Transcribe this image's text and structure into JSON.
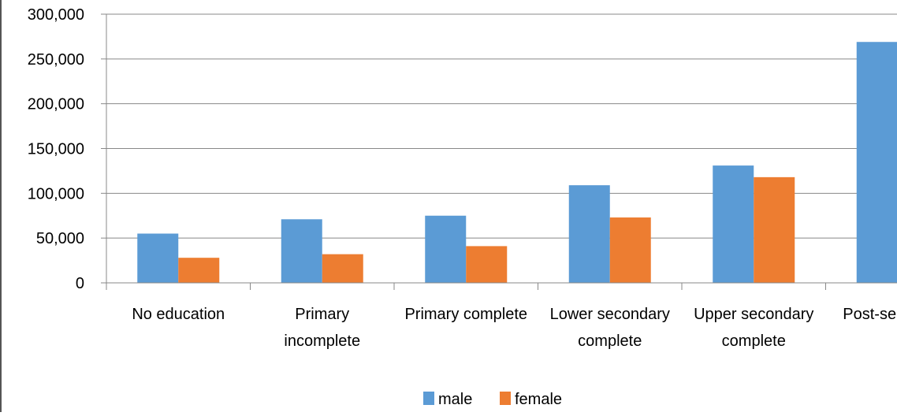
{
  "chart_data": {
    "type": "bar",
    "categories": [
      [
        "No education"
      ],
      [
        "Primary",
        "incomplete"
      ],
      [
        "Primary complete"
      ],
      [
        "Lower secondary",
        "complete"
      ],
      [
        "Upper secondary",
        "complete"
      ],
      [
        "Post-secondary"
      ]
    ],
    "series": [
      {
        "name": "male",
        "color": "#5B9BD5",
        "values": [
          55000,
          71000,
          75000,
          109000,
          131000,
          269000
        ]
      },
      {
        "name": "female",
        "color": "#ED7D31",
        "values": [
          28000,
          32000,
          41000,
          73000,
          118000,
          null
        ]
      }
    ],
    "ylim": [
      0,
      300000
    ],
    "yticks": [
      0,
      50000,
      100000,
      150000,
      200000,
      250000,
      300000
    ],
    "ytick_labels": [
      "0",
      "50,000",
      "100,000",
      "150,000",
      "200,000",
      "250,000",
      "300,000"
    ],
    "grid": true,
    "legend": "bottom",
    "title": "",
    "xlabel": "",
    "ylabel": ""
  }
}
